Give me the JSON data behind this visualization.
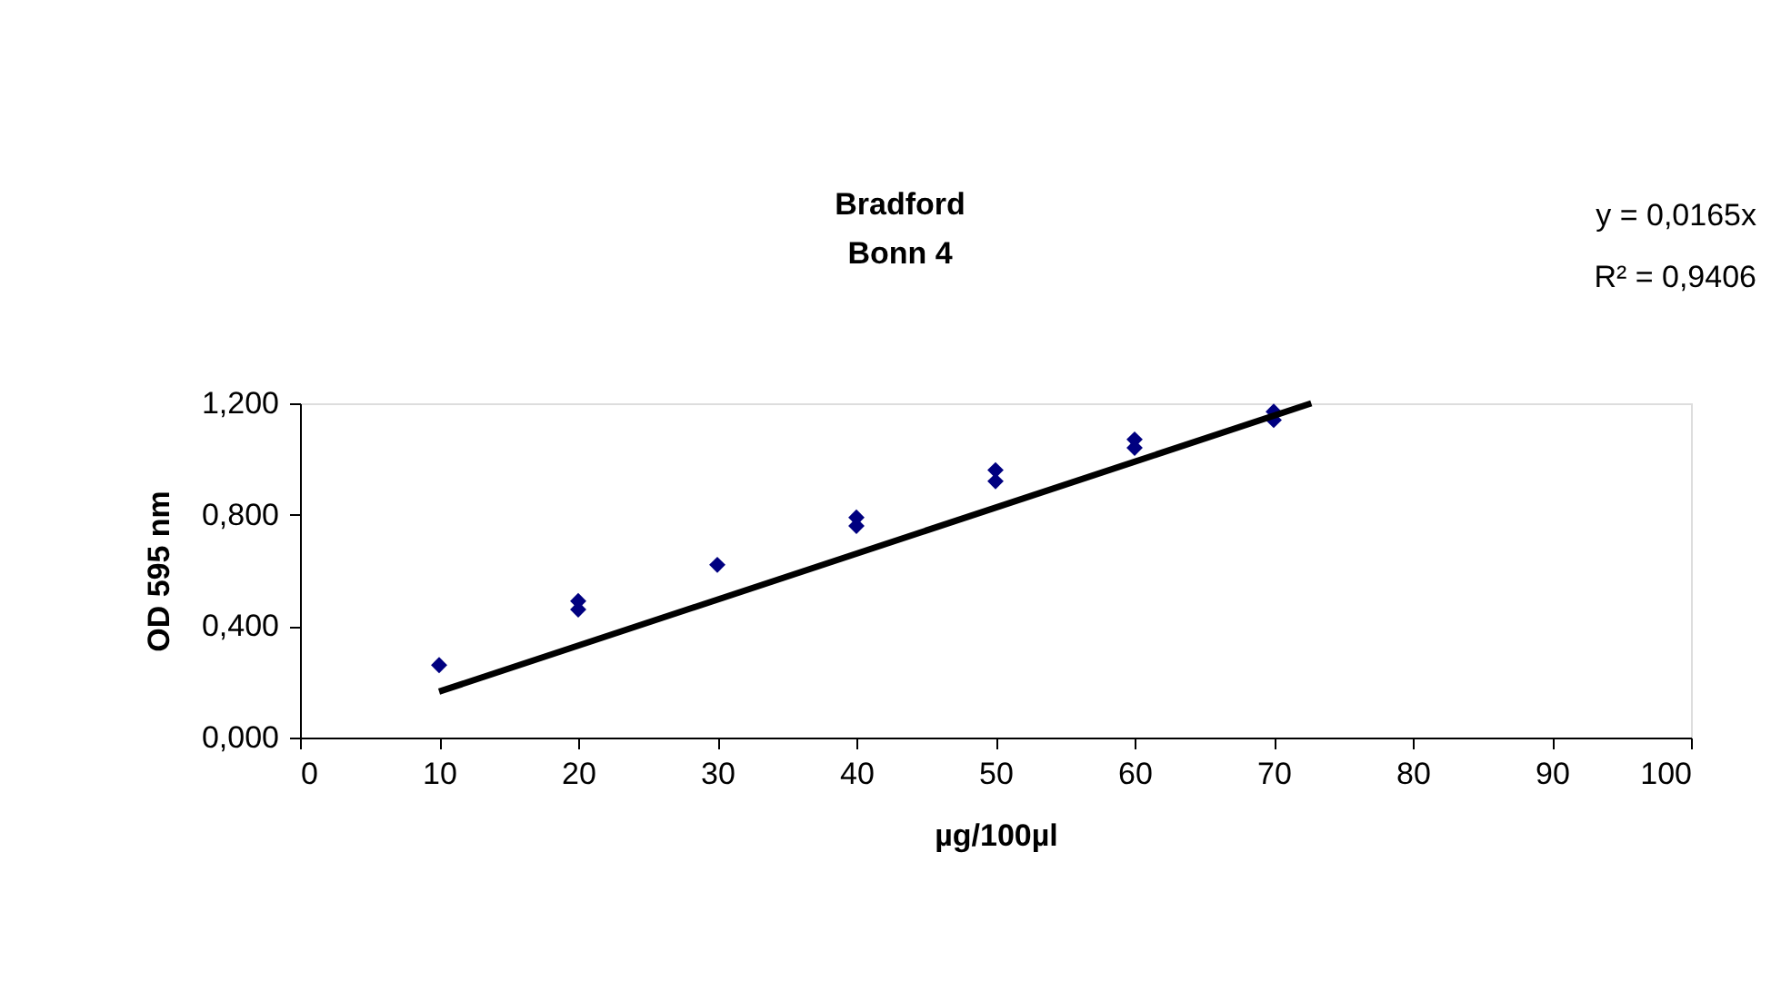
{
  "chart_data": {
    "type": "scatter",
    "title": "Bradford\nBonn 4",
    "xlabel": "µg/100µl",
    "ylabel": "OD 595 nm",
    "series": [
      {
        "marker": "diamond",
        "color": "#000080",
        "x": [
          10,
          20,
          20,
          30,
          40,
          40,
          50,
          50,
          60,
          60,
          70,
          70
        ],
        "values": [
          0.26,
          0.49,
          0.46,
          0.62,
          0.79,
          0.76,
          0.96,
          0.92,
          1.07,
          1.04,
          1.17,
          1.14
        ]
      },
      {
        "type": "line",
        "marker": "none",
        "line_style": "solid",
        "color": "#000000",
        "x": [
          10,
          72.7
        ],
        "values": [
          0.165,
          1.2
        ]
      }
    ],
    "xlim": [
      0,
      100
    ],
    "xticks": [
      0,
      10,
      20,
      30,
      40,
      50,
      60,
      70,
      80,
      90,
      100
    ],
    "ylim": [
      0,
      1.2
    ],
    "yticks": [
      {
        "value": 0,
        "label": "0,000"
      },
      {
        "value": 0.4,
        "label": "0,400"
      },
      {
        "value": 0.8,
        "label": "0,800"
      },
      {
        "value": 1.2,
        "label": "1,200"
      }
    ],
    "annotations": [
      "y = 0,0165x",
      "R² = 0,9406"
    ],
    "grid": false
  }
}
